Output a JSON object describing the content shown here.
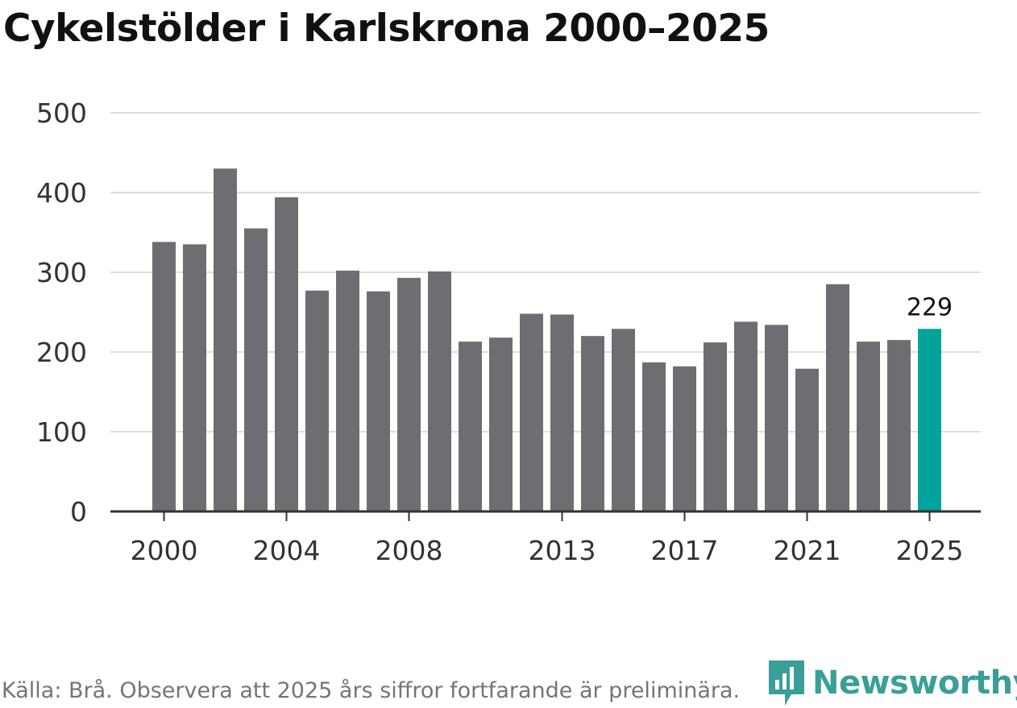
{
  "title": "Cykelstölder i Karlskrona 2000–2025",
  "source": "Källa: Brå. Observera att 2025 års siffror fortfarande är preliminära.",
  "brand": {
    "name": "Newsworthy",
    "icon": "newsworthy-logo-icon",
    "color": "#3a9e9a"
  },
  "colors": {
    "bar": "#6e6d72",
    "highlight": "#02a39a",
    "grid": "#dddddd",
    "axis": "#333333"
  },
  "chart_data": {
    "type": "bar",
    "title": "Cykelstölder i Karlskrona 2000–2025",
    "xlabel": "",
    "ylabel": "",
    "ylim": [
      0,
      500
    ],
    "yticks": [
      0,
      100,
      200,
      300,
      400,
      500
    ],
    "xticks": [
      2000,
      2004,
      2008,
      2013,
      2017,
      2021,
      2025
    ],
    "grid": true,
    "categories": [
      2000,
      2001,
      2002,
      2003,
      2004,
      2005,
      2006,
      2007,
      2008,
      2009,
      2010,
      2011,
      2012,
      2013,
      2014,
      2015,
      2016,
      2017,
      2018,
      2019,
      2020,
      2021,
      2022,
      2023,
      2024,
      2025
    ],
    "values": [
      338,
      335,
      430,
      355,
      394,
      277,
      302,
      276,
      293,
      301,
      213,
      218,
      248,
      247,
      220,
      229,
      187,
      182,
      212,
      238,
      234,
      179,
      285,
      213,
      215,
      229
    ],
    "highlight": {
      "category": 2025,
      "label": "229"
    }
  }
}
